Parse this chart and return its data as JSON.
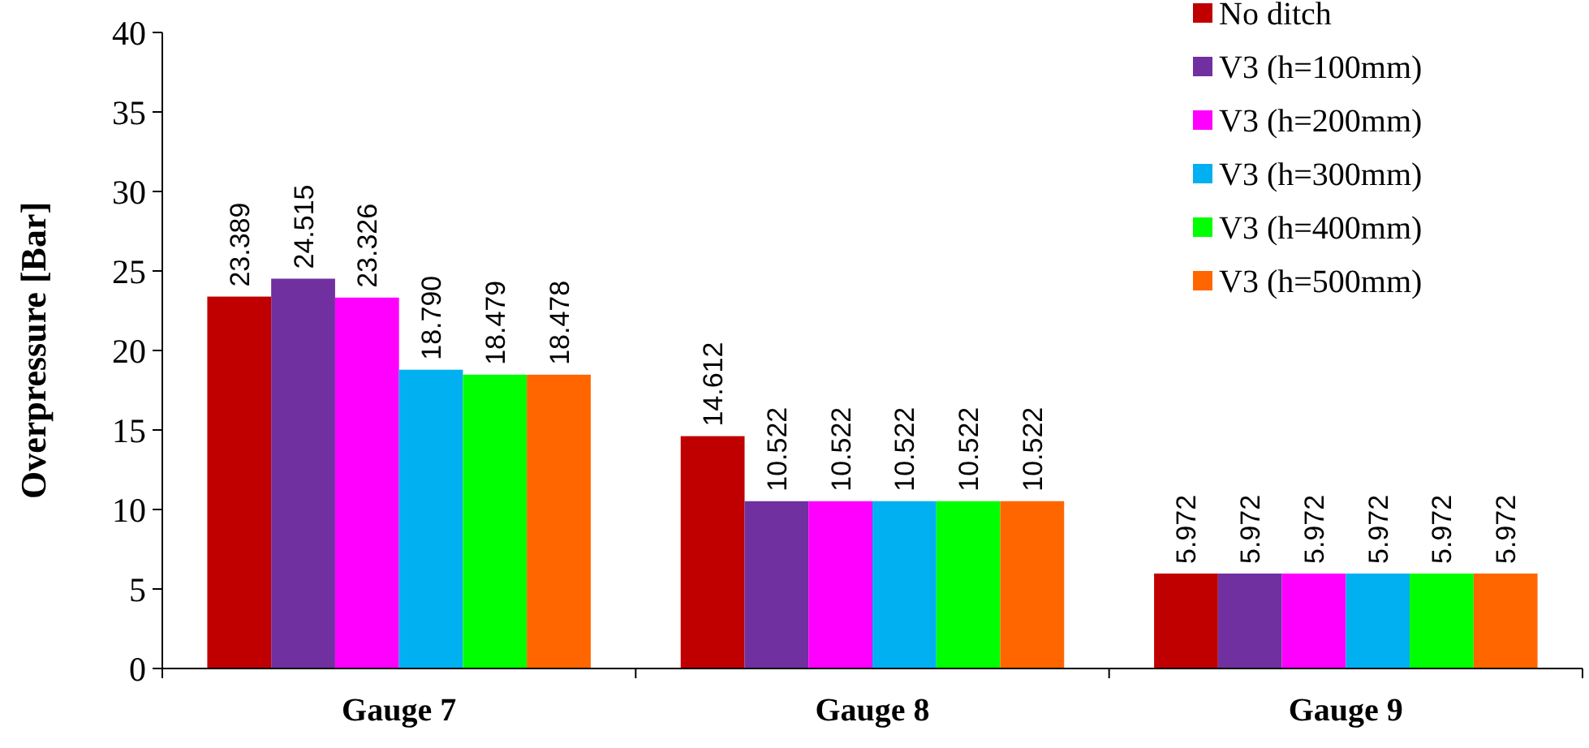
{
  "chart_data": {
    "type": "bar",
    "ylabel": "Overpressure [Bar]",
    "categories": [
      "Gauge 7",
      "Gauge 8",
      "Gauge 9"
    ],
    "series": [
      {
        "name": "No ditch",
        "color": "#c00000",
        "values": [
          23.389,
          14.612,
          5.972
        ],
        "value_labels": [
          "23.389",
          "14.612",
          "5.972"
        ]
      },
      {
        "name": "V3 (h=100mm)",
        "color": "#7030a0",
        "values": [
          24.515,
          10.522,
          5.972
        ],
        "value_labels": [
          "24.515",
          "10.522",
          "5.972"
        ]
      },
      {
        "name": "V3 (h=200mm)",
        "color": "#ff00ff",
        "values": [
          23.326,
          10.522,
          5.972
        ],
        "value_labels": [
          "23.326",
          "10.522",
          "5.972"
        ]
      },
      {
        "name": "V3 (h=300mm)",
        "color": "#00b0f0",
        "values": [
          18.79,
          10.522,
          5.972
        ],
        "value_labels": [
          "18.790",
          "10.522",
          "5.972"
        ]
      },
      {
        "name": "V3 (h=400mm)",
        "color": "#00ff00",
        "values": [
          18.479,
          10.522,
          5.972
        ],
        "value_labels": [
          "18.479",
          "10.522",
          "5.972"
        ]
      },
      {
        "name": "V3 (h=500mm)",
        "color": "#ff6600",
        "values": [
          18.478,
          10.522,
          5.972
        ],
        "value_labels": [
          "18.478",
          "10.522",
          "5.972"
        ]
      }
    ],
    "ylim": [
      0,
      40
    ],
    "yticks": [
      0,
      5,
      10,
      15,
      20,
      25,
      30,
      35,
      40
    ],
    "grid": false,
    "legend": "top right"
  }
}
